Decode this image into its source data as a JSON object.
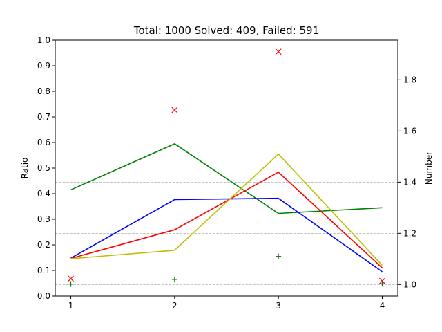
{
  "chart_data": {
    "type": "line",
    "title": "Total: 1000 Solved: 409, Failed: 591",
    "x": [
      1,
      2,
      3,
      4
    ],
    "x_ticks": [
      "1",
      "2",
      "3",
      "4"
    ],
    "xlim": [
      0.85,
      4.15
    ],
    "y_left": {
      "label": "Ratio",
      "lim": [
        0.0,
        1.0
      ],
      "ticks": [
        "0.0",
        "0.1",
        "0.2",
        "0.3",
        "0.4",
        "0.5",
        "0.6",
        "0.7",
        "0.8",
        "0.9",
        "1.0"
      ]
    },
    "y_right": {
      "label": "Number",
      "lim": [
        0.955,
        1.955
      ],
      "ticks": [
        "1.0",
        "1.2",
        "1.4",
        "1.6",
        "1.8"
      ],
      "grid": true
    },
    "series": [
      {
        "color": "#008000",
        "axis": "left",
        "kind": "line",
        "values": [
          0.415,
          0.595,
          0.323,
          0.345
        ]
      },
      {
        "color": "#0000ff",
        "axis": "left",
        "kind": "line",
        "values": [
          0.148,
          0.377,
          0.382,
          0.095
        ]
      },
      {
        "color": "#ff0000",
        "axis": "left",
        "kind": "line",
        "values": [
          0.147,
          0.259,
          0.484,
          0.11
        ]
      },
      {
        "color": "#bfbf00",
        "axis": "left",
        "kind": "line",
        "values": [
          0.146,
          0.179,
          0.555,
          0.12
        ]
      },
      {
        "color": "#ff0000",
        "axis": "left",
        "kind": "marker",
        "marker": "x",
        "values": [
          0.068,
          0.727,
          0.955,
          0.059
        ]
      },
      {
        "color": "#008000",
        "axis": "left",
        "kind": "marker",
        "marker": "+",
        "values": [
          0.047,
          0.065,
          0.155,
          0.048
        ]
      }
    ]
  }
}
